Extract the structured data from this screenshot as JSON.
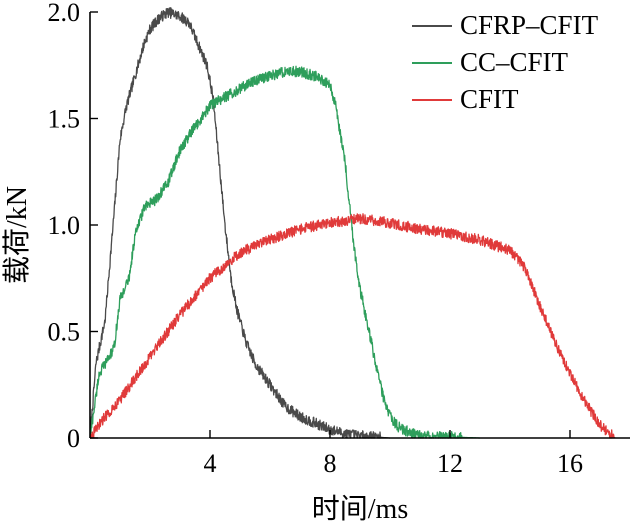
{
  "chart_data": {
    "type": "line",
    "xlabel": "时间/ms",
    "ylabel": "载荷/kN",
    "xlim": [
      0,
      18
    ],
    "ylim": [
      0,
      2.0
    ],
    "x_ticks": [
      4,
      8,
      12,
      16
    ],
    "x_tick_labels": [
      "4",
      "8",
      "12",
      "16"
    ],
    "y_ticks": [
      0,
      0.5,
      1.0,
      1.5,
      2.0
    ],
    "y_tick_labels": [
      "0",
      "0.5",
      "1.0",
      "1.5",
      "2.0"
    ],
    "legend_position": "top-right",
    "grid": false,
    "series": [
      {
        "name": "CFRP–CFIT",
        "color": "#4a4a4a",
        "x": [
          0,
          0.2,
          0.5,
          0.8,
          1.0,
          1.2,
          1.5,
          1.8,
          2.0,
          2.3,
          2.6,
          3.0,
          3.3,
          3.6,
          3.9,
          4.1,
          4.3,
          4.5,
          4.7,
          4.9,
          5.2,
          5.5,
          6.0,
          6.5,
          7.0,
          7.5,
          8.0,
          8.5,
          9.0,
          9.5,
          10.0
        ],
        "y": [
          0,
          0.35,
          0.55,
          1.05,
          1.4,
          1.55,
          1.7,
          1.85,
          1.92,
          1.97,
          2.0,
          1.98,
          1.95,
          1.85,
          1.75,
          1.6,
          1.3,
          1.0,
          0.75,
          0.6,
          0.45,
          0.35,
          0.25,
          0.15,
          0.1,
          0.07,
          0.04,
          0.02,
          0.01,
          0.005,
          0
        ]
      },
      {
        "name": "CC–CFIT",
        "color": "#2e9e5b",
        "x": [
          0,
          0.3,
          0.8,
          1.0,
          1.3,
          1.5,
          1.8,
          2.2,
          2.6,
          3.0,
          3.3,
          3.7,
          4.0,
          4.5,
          5.0,
          5.5,
          6.0,
          6.5,
          7.0,
          7.5,
          8.0,
          8.2,
          8.5,
          8.8,
          9.0,
          9.3,
          9.6,
          9.8,
          10.0,
          10.3,
          10.6,
          11.0,
          12.0,
          13.0
        ],
        "y": [
          0,
          0.3,
          0.42,
          0.65,
          0.75,
          0.95,
          1.08,
          1.12,
          1.2,
          1.35,
          1.42,
          1.5,
          1.56,
          1.6,
          1.64,
          1.68,
          1.7,
          1.72,
          1.72,
          1.7,
          1.66,
          1.55,
          1.3,
          0.9,
          0.7,
          0.5,
          0.3,
          0.18,
          0.1,
          0.05,
          0.03,
          0.01,
          0.005,
          0
        ]
      },
      {
        "name": "CFIT",
        "color": "#e03a3a",
        "x": [
          0,
          0.5,
          1.0,
          2.0,
          3.0,
          4.0,
          5.0,
          6.0,
          7.0,
          8.0,
          9.0,
          10.0,
          11.0,
          12.0,
          13.0,
          14.0,
          14.5,
          15.0,
          15.5,
          16.0,
          16.5,
          17.0,
          17.5
        ],
        "y": [
          0,
          0.1,
          0.18,
          0.38,
          0.58,
          0.75,
          0.87,
          0.93,
          0.98,
          1.01,
          1.03,
          1.01,
          0.98,
          0.96,
          0.93,
          0.88,
          0.8,
          0.62,
          0.45,
          0.3,
          0.17,
          0.06,
          0
        ]
      }
    ]
  }
}
